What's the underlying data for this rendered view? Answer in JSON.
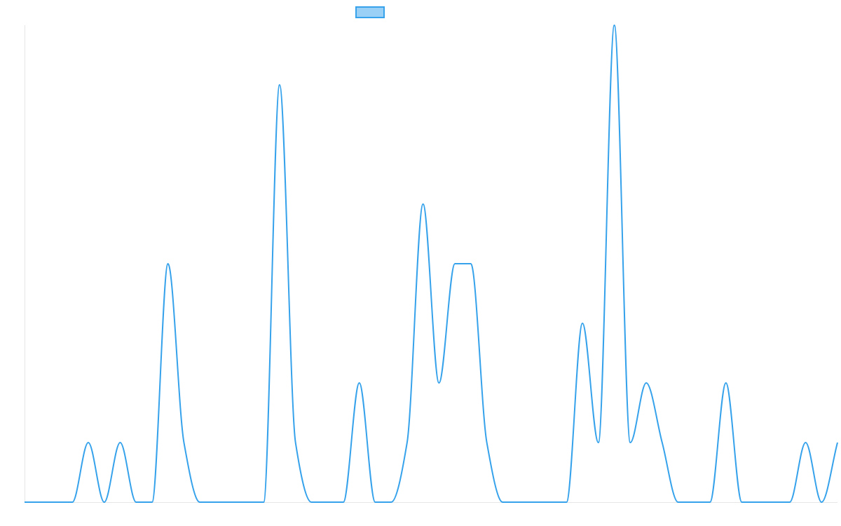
{
  "chart_data": {
    "type": "line",
    "title": "",
    "xlabel": "",
    "ylabel": "",
    "legend": {
      "position": "top-center",
      "swatch_only": true
    },
    "grid": false,
    "xlim": [
      0,
      51
    ],
    "ylim": [
      0,
      8
    ],
    "series": [
      {
        "color": "#36a2eb",
        "fill_color": "#9ad0f5",
        "x": [
          0,
          1,
          2,
          3,
          4,
          5,
          6,
          7,
          8,
          9,
          10,
          11,
          12,
          13,
          14,
          15,
          16,
          17,
          18,
          19,
          20,
          21,
          22,
          23,
          24,
          25,
          26,
          27,
          28,
          29,
          30,
          31,
          32,
          33,
          34,
          35,
          36,
          37,
          38,
          39,
          40,
          41,
          42,
          43,
          44,
          45,
          46,
          47,
          48,
          49,
          50,
          51
        ],
        "values": [
          0,
          0,
          0,
          0,
          1,
          0,
          1,
          0,
          0,
          4,
          1,
          0,
          0,
          0,
          0,
          0,
          7,
          1,
          0,
          0,
          0,
          2,
          0,
          0,
          1,
          5,
          2,
          4,
          4,
          1,
          0,
          0,
          0,
          0,
          0,
          3,
          1,
          8,
          1,
          2,
          1,
          0,
          0,
          0,
          2,
          0,
          0,
          0,
          0,
          1,
          0,
          1
        ]
      }
    ]
  }
}
